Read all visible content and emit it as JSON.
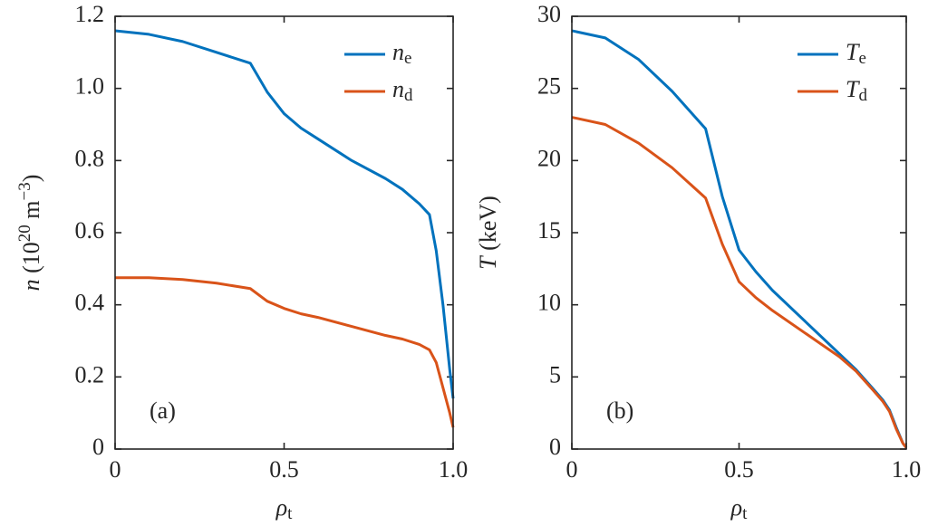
{
  "chart_data": [
    {
      "type": "line",
      "annotation": "(a)",
      "x_label": [
        {
          "text": "ρ",
          "style": "italic"
        },
        {
          "text": "t",
          "style": "sub"
        }
      ],
      "y_label": [
        {
          "text": "n",
          "style": "italic"
        },
        {
          "text": " (10",
          "style": "normal"
        },
        {
          "text": "20",
          "style": "sup"
        },
        {
          "text": " m",
          "style": "normal"
        },
        {
          "text": "−3",
          "style": "sup"
        },
        {
          "text": ")",
          "style": "normal"
        }
      ],
      "x": [
        0,
        0.1,
        0.2,
        0.3,
        0.4,
        0.45,
        0.5,
        0.55,
        0.6,
        0.7,
        0.8,
        0.85,
        0.9,
        0.93,
        0.95,
        0.97,
        0.99,
        1.0
      ],
      "series": [
        {
          "name": [
            {
              "text": "n",
              "style": "italic"
            },
            {
              "text": "e",
              "style": "sub"
            }
          ],
          "color": "#0072BD",
          "values": [
            1.16,
            1.15,
            1.13,
            1.1,
            1.07,
            0.99,
            0.93,
            0.89,
            0.86,
            0.8,
            0.75,
            0.72,
            0.68,
            0.65,
            0.55,
            0.4,
            0.22,
            0.14
          ]
        },
        {
          "name": [
            {
              "text": "n",
              "style": "italic"
            },
            {
              "text": "d",
              "style": "sub"
            }
          ],
          "color": "#D95319",
          "values": [
            0.475,
            0.475,
            0.47,
            0.46,
            0.445,
            0.41,
            0.39,
            0.375,
            0.365,
            0.34,
            0.315,
            0.305,
            0.29,
            0.275,
            0.24,
            0.17,
            0.1,
            0.06
          ]
        }
      ],
      "xlim": [
        0,
        1
      ],
      "xticks": [
        0,
        0.5,
        {
          "value": 1,
          "label": "1.0"
        }
      ],
      "ylim": [
        0,
        1.2
      ],
      "yticks": [
        0,
        0.2,
        0.4,
        0.6,
        0.8,
        {
          "value": 1,
          "label": "1.0"
        },
        1.2
      ],
      "legend": "upper right",
      "grid": false
    },
    {
      "type": "line",
      "annotation": "(b)",
      "x_label": [
        {
          "text": "ρ",
          "style": "italic"
        },
        {
          "text": "t",
          "style": "sub"
        }
      ],
      "y_label": [
        {
          "text": "T",
          "style": "italic"
        },
        {
          "text": " (keV)",
          "style": "normal"
        }
      ],
      "x": [
        0,
        0.1,
        0.2,
        0.3,
        0.4,
        0.45,
        0.5,
        0.55,
        0.6,
        0.7,
        0.8,
        0.85,
        0.9,
        0.93,
        0.95,
        0.97,
        0.99,
        1.0
      ],
      "series": [
        {
          "name": [
            {
              "text": "T",
              "style": "italic"
            },
            {
              "text": "e",
              "style": "sub"
            }
          ],
          "color": "#0072BD",
          "values": [
            29.0,
            28.5,
            27.0,
            24.8,
            22.2,
            17.5,
            13.8,
            12.3,
            11.0,
            8.8,
            6.6,
            5.5,
            4.2,
            3.4,
            2.7,
            1.5,
            0.4,
            0.1
          ]
        },
        {
          "name": [
            {
              "text": "T",
              "style": "italic"
            },
            {
              "text": "d",
              "style": "sub"
            }
          ],
          "color": "#D95319",
          "values": [
            23.0,
            22.5,
            21.2,
            19.5,
            17.4,
            14.2,
            11.6,
            10.5,
            9.6,
            8.0,
            6.4,
            5.4,
            4.1,
            3.3,
            2.6,
            1.4,
            0.4,
            0.1
          ]
        }
      ],
      "xlim": [
        0,
        1
      ],
      "xticks": [
        0,
        0.5,
        {
          "value": 1,
          "label": "1.0"
        }
      ],
      "ylim": [
        0,
        30
      ],
      "yticks": [
        0,
        5,
        10,
        15,
        20,
        25,
        30
      ],
      "legend": "upper right",
      "grid": false
    }
  ]
}
